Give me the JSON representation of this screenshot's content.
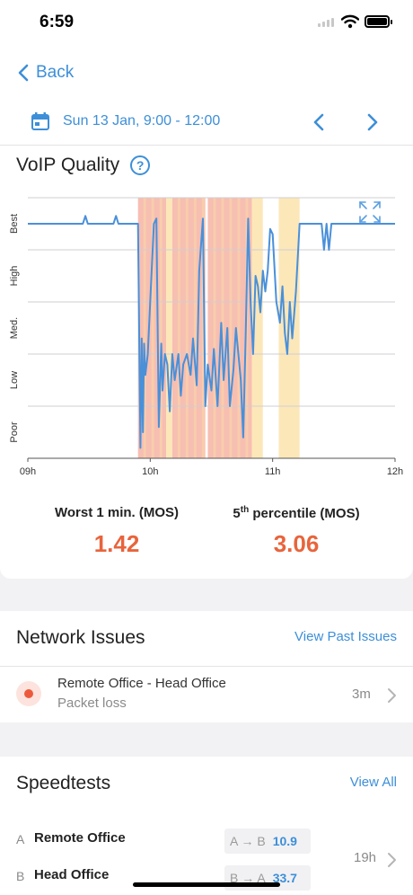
{
  "status": {
    "time": "6:59"
  },
  "header": {
    "back_label": "Back",
    "date_range": "Sun 13 Jan, 9:00 - 12:00"
  },
  "voip": {
    "title": "VoIP Quality",
    "help_symbol": "?",
    "worst_label": "Worst 1 min. (MOS)",
    "worst_value": "1.42",
    "percentile_label_sup": "th",
    "percentile_label_pre": "5",
    "percentile_label_post": " percentile (MOS)",
    "percentile_value": "3.06"
  },
  "chart_data": {
    "type": "line",
    "y_categories": [
      "Best",
      "High",
      "Med.",
      "Low",
      "Poor"
    ],
    "x_ticks": [
      "09h",
      "10h",
      "11h",
      "12h"
    ],
    "xlim": [
      9,
      12
    ],
    "ylim": [
      0,
      5
    ],
    "grid": true,
    "line_color": "#4a90d9",
    "highlight_colors": {
      "bad": "#f6b3a4",
      "warn": "#fbe3ad"
    },
    "highlights": [
      {
        "from": 9.9,
        "to": 10.13,
        "level": "bad"
      },
      {
        "from": 10.13,
        "to": 10.18,
        "level": "warn"
      },
      {
        "from": 10.18,
        "to": 10.45,
        "level": "bad"
      },
      {
        "from": 10.47,
        "to": 10.83,
        "level": "bad"
      },
      {
        "from": 10.83,
        "to": 10.92,
        "level": "warn"
      },
      {
        "from": 11.05,
        "to": 11.22,
        "level": "warn"
      }
    ],
    "series": [
      {
        "values": [
          [
            9.0,
            4.5
          ],
          [
            9.45,
            4.5
          ],
          [
            9.47,
            4.65
          ],
          [
            9.49,
            4.5
          ],
          [
            9.7,
            4.5
          ],
          [
            9.72,
            4.65
          ],
          [
            9.74,
            4.5
          ],
          [
            9.9,
            4.5
          ],
          [
            9.92,
            0.2
          ],
          [
            9.93,
            2.3
          ],
          [
            9.94,
            0.5
          ],
          [
            9.95,
            2.2
          ],
          [
            9.96,
            1.6
          ],
          [
            9.98,
            2.0
          ],
          [
            10.0,
            3.0
          ],
          [
            10.03,
            4.5
          ],
          [
            10.05,
            4.6
          ],
          [
            10.07,
            0.6
          ],
          [
            10.09,
            2.2
          ],
          [
            10.1,
            1.3
          ],
          [
            10.12,
            2.0
          ],
          [
            10.14,
            1.8
          ],
          [
            10.16,
            0.9
          ],
          [
            10.18,
            2.0
          ],
          [
            10.2,
            1.5
          ],
          [
            10.23,
            2.0
          ],
          [
            10.25,
            1.2
          ],
          [
            10.27,
            1.8
          ],
          [
            10.3,
            2.0
          ],
          [
            10.33,
            1.6
          ],
          [
            10.35,
            2.3
          ],
          [
            10.38,
            1.4
          ],
          [
            10.4,
            3.6
          ],
          [
            10.43,
            4.6
          ],
          [
            10.45,
            1.0
          ],
          [
            10.47,
            1.8
          ],
          [
            10.5,
            1.3
          ],
          [
            10.52,
            2.1
          ],
          [
            10.55,
            1.0
          ],
          [
            10.58,
            2.6
          ],
          [
            10.6,
            1.5
          ],
          [
            10.63,
            2.5
          ],
          [
            10.65,
            1.0
          ],
          [
            10.68,
            1.7
          ],
          [
            10.7,
            2.5
          ],
          [
            10.72,
            2.0
          ],
          [
            10.74,
            1.5
          ],
          [
            10.76,
            0.4
          ],
          [
            10.78,
            2.4
          ],
          [
            10.8,
            4.6
          ],
          [
            10.82,
            3.0
          ],
          [
            10.84,
            2.0
          ],
          [
            10.86,
            3.5
          ],
          [
            10.88,
            3.3
          ],
          [
            10.9,
            2.8
          ],
          [
            10.92,
            3.6
          ],
          [
            10.94,
            3.2
          ],
          [
            10.96,
            3.6
          ],
          [
            10.98,
            4.4
          ],
          [
            11.0,
            4.3
          ],
          [
            11.03,
            3.0
          ],
          [
            11.06,
            2.6
          ],
          [
            11.08,
            3.3
          ],
          [
            11.1,
            2.4
          ],
          [
            11.12,
            2.0
          ],
          [
            11.14,
            3.0
          ],
          [
            11.16,
            2.3
          ],
          [
            11.19,
            3.2
          ],
          [
            11.22,
            4.5
          ],
          [
            11.4,
            4.5
          ],
          [
            11.42,
            4.0
          ],
          [
            11.44,
            4.5
          ],
          [
            11.46,
            4.0
          ],
          [
            11.48,
            4.5
          ],
          [
            12.0,
            4.5
          ]
        ]
      }
    ]
  },
  "network_issues": {
    "title": "Network Issues",
    "link": "View Past Issues",
    "items": [
      {
        "title": "Remote Office - Head Office",
        "subtitle": "Packet loss",
        "age": "3m"
      }
    ]
  },
  "speedtests": {
    "title": "Speedtests",
    "link": "View All",
    "age": "19h",
    "rows": [
      {
        "letter": "A",
        "name": "Remote Office",
        "direction": "A → B",
        "value": "10.9"
      },
      {
        "letter": "B",
        "name": "Head Office",
        "direction": "B → A",
        "value": "33.7"
      }
    ]
  }
}
